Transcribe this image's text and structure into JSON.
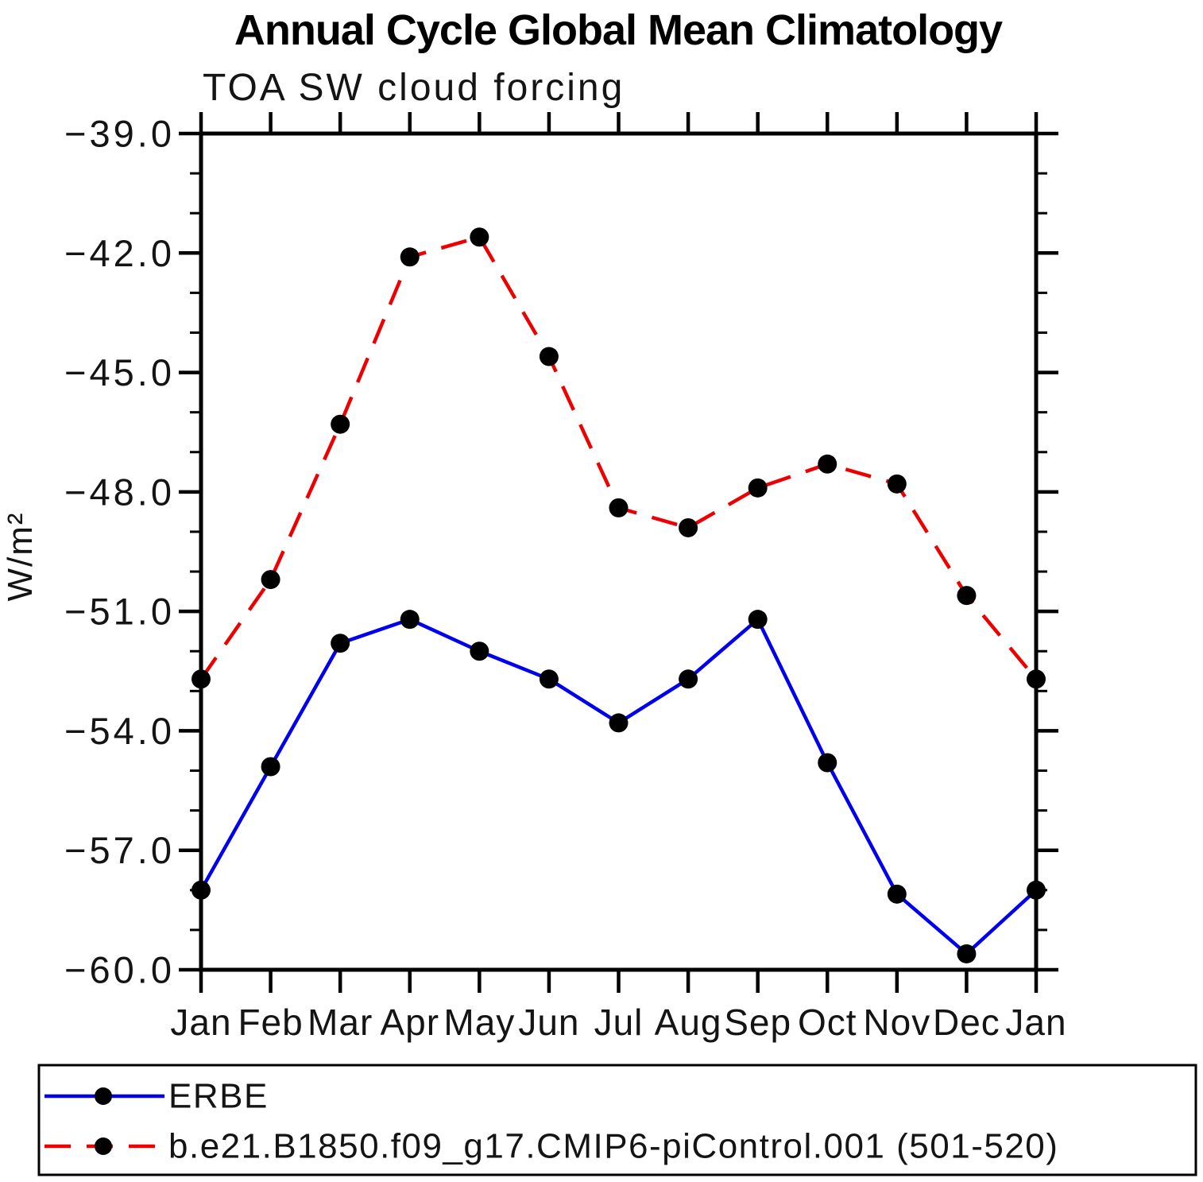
{
  "title": "Annual Cycle Global Mean Climatology",
  "subtitle": "TOA SW cloud forcing",
  "y_axis_label": "W/m²",
  "legend": {
    "position": "bottom",
    "entries": [
      {
        "label": "ERBE"
      },
      {
        "label": "b.e21.B1850.f09_g17.CMIP6-piControl.001 (501-520)"
      }
    ]
  },
  "chart_data": {
    "type": "line",
    "title": "Annual Cycle Global Mean Climatology",
    "subtitle": "TOA SW cloud forcing",
    "xlabel": "",
    "ylabel": "W/m²",
    "categories": [
      "Jan",
      "Feb",
      "Mar",
      "Apr",
      "May",
      "Jun",
      "Jul",
      "Aug",
      "Sep",
      "Oct",
      "Nov",
      "Dec",
      "Jan"
    ],
    "ylim": [
      -60.0,
      -39.0
    ],
    "y_major_ticks": [
      -39.0,
      -42.0,
      -45.0,
      -48.0,
      -51.0,
      -54.0,
      -57.0,
      -60.0
    ],
    "y_tick_labels": [
      "−39.0",
      "−42.0",
      "−45.0",
      "−48.0",
      "−51.0",
      "−54.0",
      "−57.0",
      "−60.0"
    ],
    "y_minor_step": 1.0,
    "grid": false,
    "legend_position": "bottom",
    "marker": "filled-circle",
    "marker_color": "#000000",
    "series": [
      {
        "name": "ERBE",
        "color": "#0000ee",
        "line_style": "solid",
        "values": [
          -58.0,
          -54.9,
          -51.8,
          -51.2,
          -52.0,
          -52.7,
          -53.8,
          -52.7,
          -51.2,
          -54.8,
          -58.1,
          -59.6,
          -58.0
        ]
      },
      {
        "name": "b.e21.B1850.f09_g17.CMIP6-piControl.001 (501-520)",
        "color": "#ee0000",
        "line_style": "dashed",
        "values": [
          -52.7,
          -50.2,
          -46.3,
          -42.1,
          -41.6,
          -44.6,
          -48.4,
          -48.9,
          -47.9,
          -47.3,
          -47.8,
          -50.6,
          -52.7
        ]
      }
    ]
  }
}
